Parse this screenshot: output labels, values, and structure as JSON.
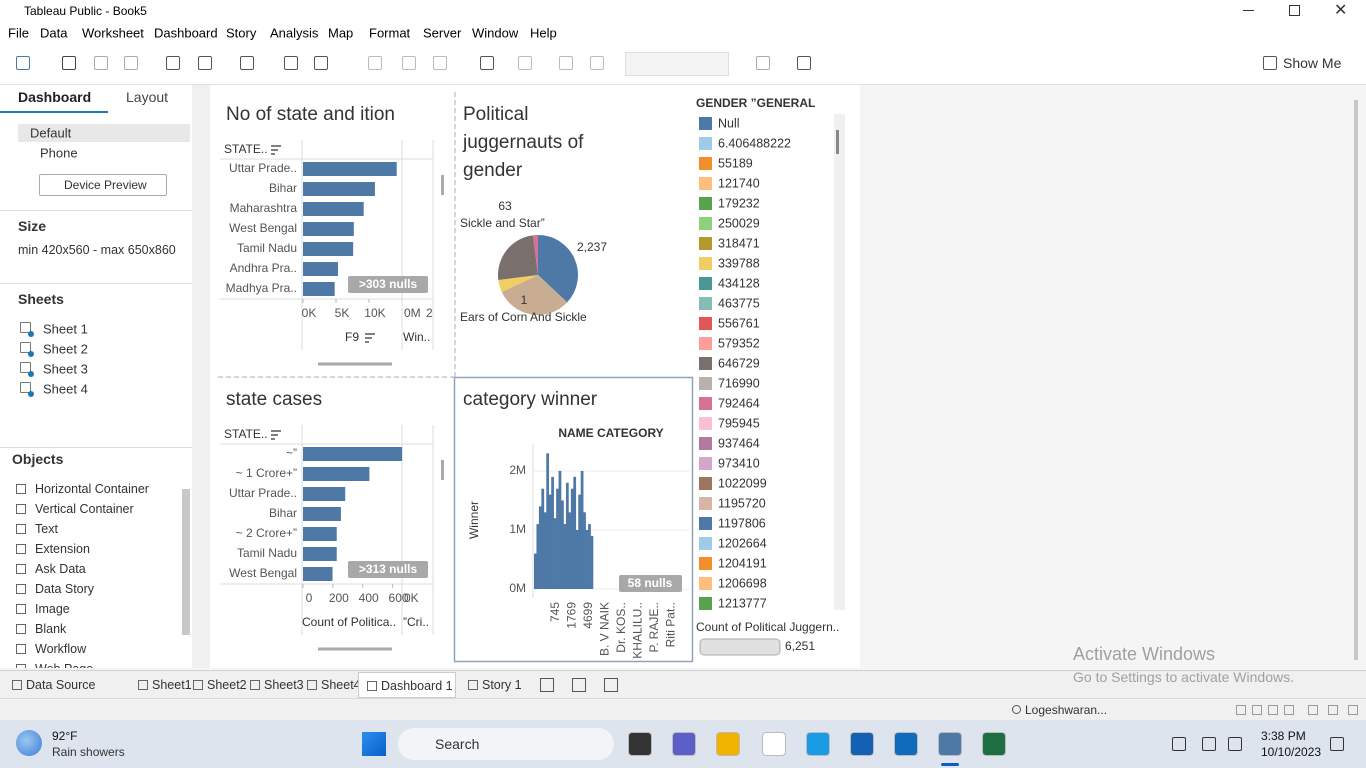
{
  "window": {
    "title": "Tableau Public - Book5"
  },
  "menu": [
    "File",
    "Data",
    "Worksheet",
    "Dashboard",
    "Story",
    "Analysis",
    "Map",
    "Format",
    "Server",
    "Window",
    "Help"
  ],
  "toolbar": {
    "show_me": "Show Me"
  },
  "left_panel": {
    "tabs": [
      "Dashboard",
      "Layout"
    ],
    "devices": [
      "Default",
      "Phone"
    ],
    "device_preview": "Device Preview",
    "size_heading": "Size",
    "size_value": "min 420x560 - max 650x860",
    "sheets_heading": "Sheets",
    "sheets": [
      "Sheet 1",
      "Sheet 2",
      "Sheet 3",
      "Sheet 4"
    ],
    "objects_heading": "Objects",
    "objects": [
      "Horizontal Container",
      "Vertical Container",
      "Text",
      "Extension",
      "Ask Data",
      "Data Story",
      "Image",
      "Blank",
      "Workflow",
      "Web Page"
    ]
  },
  "dashboard": {
    "sheet_a": {
      "title": "No of state and ition",
      "row_header": "STATE..",
      "categories": [
        "Uttar Prade..",
        "Bihar",
        "Maharashtra",
        "West Bengal",
        "Tamil Nadu",
        "Andhra Pra..",
        "Madhya Pra.."
      ],
      "values": [
        14200,
        10900,
        9200,
        7700,
        7600,
        5300,
        4800
      ],
      "color": "#4e79a7",
      "xlim": [
        0,
        14700
      ],
      "xticks": [
        {
          "value": 0,
          "label": "0K"
        },
        {
          "value": 5000,
          "label": "5K"
        },
        {
          "value": 10000,
          "label": "10K"
        }
      ],
      "x_title": "F9",
      "second_title": "Win..",
      "second_axis_labels": [
        "0M",
        "2"
      ],
      "nulls": ">303 nulls"
    },
    "sheet_b": {
      "title": "state cases",
      "row_header": "STATE..",
      "categories": [
        "~”",
        "~ 1 Crore+”",
        "Uttar Prade..",
        "Bihar",
        "~ 2 Crore+”",
        "Tamil Nadu",
        "West Bengal"
      ],
      "values": [
        664,
        445,
        283,
        254,
        226,
        226,
        198
      ],
      "color": "#4e79a7",
      "xlim": [
        0,
        650
      ],
      "xticks": [
        0,
        200,
        400,
        600
      ],
      "x_title": "Count of Politica..",
      "second_title": "”Cri..",
      "second_axis_labels": [
        "0K"
      ],
      "nulls": ">313 nulls"
    },
    "pie": {
      "title_lines": [
        "Political",
        "juggernauts of",
        "gender"
      ],
      "values": [
        37,
        31,
        5,
        25,
        2
      ],
      "colors": [
        "#4e79a7",
        "#c9ad92",
        "#f1ce63",
        "#79706e",
        "#d37295"
      ],
      "annotations": [
        "63",
        "Sickle and Star”",
        "2,237",
        "1",
        "Ears of Corn And Sickle"
      ]
    },
    "histogram": {
      "title": "category winner",
      "header": "NAME CATEGORY",
      "y_title": "Winner",
      "color": "#4e79a7",
      "ylim": [
        0,
        2000000
      ],
      "yticks": [
        {
          "value": 0,
          "label": "0M"
        },
        {
          "value": 1000000,
          "label": "1M"
        },
        {
          "value": 2000000,
          "label": "2M"
        }
      ],
      "values": [
        600000,
        1100000,
        1400000,
        1700000,
        1300000,
        2300000,
        1600000,
        1900000,
        1200000,
        1700000,
        2000000,
        1500000,
        1100000,
        1800000,
        1300000,
        1700000,
        1900000,
        1000000,
        1600000,
        2000000,
        1300000,
        1000000,
        1100000,
        900000
      ],
      "x_labels": [
        "745",
        "1769",
        "4699",
        "B. V NAIK",
        "Dr. KOS..",
        "KHALILU..",
        "P. RAJE..",
        "Riti Pat.."
      ],
      "nulls": "58 nulls"
    },
    "legend": {
      "title": "GENDER ”GENERAL",
      "items": [
        {
          "label": "Null",
          "color": "#4e79a7"
        },
        {
          "label": "6.406488222",
          "color": "#a0cbe8"
        },
        {
          "label": "55189",
          "color": "#f28e2b"
        },
        {
          "label": "121740",
          "color": "#ffbe7d"
        },
        {
          "label": "179232",
          "color": "#59a14f"
        },
        {
          "label": "250029",
          "color": "#8cd17d"
        },
        {
          "label": "318471",
          "color": "#b6992d"
        },
        {
          "label": "339788",
          "color": "#f1ce63"
        },
        {
          "label": "434128",
          "color": "#499894"
        },
        {
          "label": "463775",
          "color": "#86bcb6"
        },
        {
          "label": "556761",
          "color": "#e15759"
        },
        {
          "label": "579352",
          "color": "#ff9d9a"
        },
        {
          "label": "646729",
          "color": "#79706e"
        },
        {
          "label": "716990",
          "color": "#bab0ac"
        },
        {
          "label": "792464",
          "color": "#d37295"
        },
        {
          "label": "795945",
          "color": "#fabfd2"
        },
        {
          "label": "937464",
          "color": "#b07aa1"
        },
        {
          "label": "973410",
          "color": "#d4a6c8"
        },
        {
          "label": "1022099",
          "color": "#9d7660"
        },
        {
          "label": "1195720",
          "color": "#d7b5a6"
        },
        {
          "label": "1197806",
          "color": "#4e79a7"
        },
        {
          "label": "1202664",
          "color": "#a0cbe8"
        },
        {
          "label": "1204191",
          "color": "#f28e2b"
        },
        {
          "label": "1206698",
          "color": "#ffbe7d"
        },
        {
          "label": "1213777",
          "color": "#59a14f"
        }
      ],
      "size_title": "Count of Political Juggern..",
      "size_value": "6,251"
    }
  },
  "bottom_tabs": [
    "Data Source",
    "Sheet1",
    "Sheet2",
    "Sheet3",
    "Sheet4",
    "Dashboard 1",
    "Story 1"
  ],
  "status": {
    "user": "Logeshwaran..."
  },
  "watermark": [
    "Activate Windows",
    "Go to Settings to activate Windows."
  ],
  "taskbar": {
    "temperature": "92°F",
    "weather": "Rain showers",
    "search": "Search",
    "time": "3:38 PM",
    "date": "10/10/2023"
  }
}
